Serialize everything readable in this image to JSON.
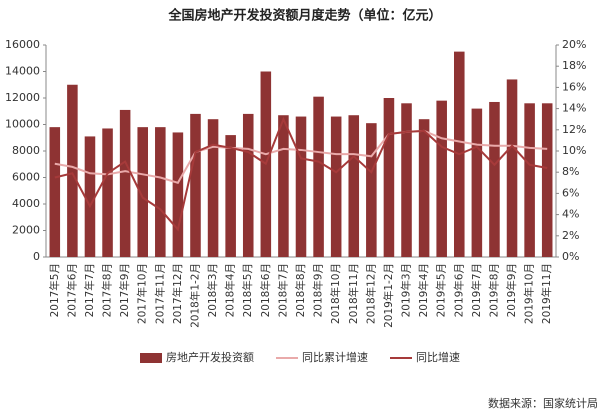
{
  "chart_data": {
    "type": "bar_line",
    "title": "全国房地产开发投资额月度走势（单位：亿元）",
    "source": "数据来源：国家统计局",
    "categories": [
      "2017年5月",
      "2017年6月",
      "2017年7月",
      "2017年8月",
      "2017年9月",
      "2017年10月",
      "2017年11月",
      "2017年12月",
      "2018年1-2月",
      "2018年3月",
      "2018年4月",
      "2018年5月",
      "2018年6月",
      "2018年7月",
      "2018年8月",
      "2018年9月",
      "2018年10月",
      "2018年11月",
      "2018年12月",
      "2019年1-2月",
      "2019年3月",
      "2019年4月",
      "2019年5月",
      "2019年6月",
      "2019年7月",
      "2019年8月",
      "2019年9月",
      "2019年10月",
      "2019年11月"
    ],
    "series": [
      {
        "name": "房地产开发投资额",
        "type": "bar",
        "color": "#8e3333",
        "values": [
          9800,
          13000,
          9100,
          9700,
          11100,
          9800,
          9800,
          9400,
          10800,
          10400,
          9200,
          10800,
          14000,
          10700,
          10600,
          12100,
          10600,
          10700,
          10100,
          12000,
          11600,
          10400,
          11800,
          15500,
          11200,
          11700,
          13400,
          11600,
          11600
        ]
      },
      {
        "name": "同比累计增速",
        "type": "line",
        "axis": "y2",
        "color": "#e9aaaa",
        "values": [
          8.8,
          8.5,
          7.9,
          7.8,
          8.1,
          7.8,
          7.5,
          7.0,
          9.9,
          10.4,
          10.3,
          10.2,
          9.7,
          10.2,
          10.1,
          9.9,
          9.7,
          9.7,
          9.5,
          11.6,
          11.8,
          11.9,
          11.2,
          10.9,
          10.6,
          10.5,
          10.5,
          10.3,
          10.2
        ]
      },
      {
        "name": "同比增速",
        "type": "line",
        "axis": "y2",
        "color": "#a63a3a",
        "values": [
          7.5,
          7.9,
          4.8,
          7.9,
          9.0,
          5.6,
          4.5,
          2.6,
          9.9,
          10.6,
          10.3,
          9.9,
          8.8,
          13.0,
          9.3,
          9.0,
          8.0,
          9.5,
          8.0,
          11.6,
          11.8,
          11.9,
          10.4,
          9.7,
          10.4,
          8.7,
          10.5,
          8.7,
          8.4
        ]
      }
    ],
    "ylim": [
      0,
      16000
    ],
    "yticks": [
      0,
      2000,
      4000,
      6000,
      8000,
      10000,
      12000,
      14000,
      16000
    ],
    "y2lim": [
      0,
      20
    ],
    "y2ticks": [
      {
        "value": 0,
        "label": "0%"
      },
      {
        "value": 2,
        "label": "2%"
      },
      {
        "value": 4,
        "label": "4%"
      },
      {
        "value": 6,
        "label": "6%"
      },
      {
        "value": 8,
        "label": "8%"
      },
      {
        "value": 10,
        "label": "10%"
      },
      {
        "value": 12,
        "label": "12%"
      },
      {
        "value": 14,
        "label": "14%"
      },
      {
        "value": 16,
        "label": "16%"
      },
      {
        "value": 18,
        "label": "18%"
      },
      {
        "value": 20,
        "label": "20%"
      }
    ]
  }
}
